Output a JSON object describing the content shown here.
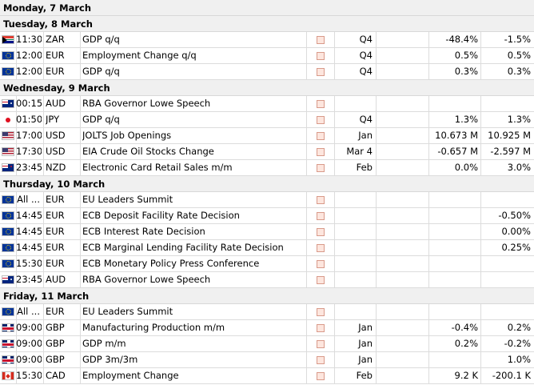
{
  "days": [
    {
      "label": "Monday, 7 March",
      "events": []
    },
    {
      "label": "Tuesday, 8 March",
      "events": [
        {
          "flag": "za-flag-icon",
          "time": "11:30",
          "currency": "ZAR",
          "event": "GDP q/q",
          "period": "Q4",
          "actual": "-48.4%",
          "previous": "-1.5%"
        },
        {
          "flag": "eu-flag-icon",
          "time": "12:00",
          "currency": "EUR",
          "event": "Employment Change q/q",
          "period": "Q4",
          "actual": "0.5%",
          "previous": "0.5%"
        },
        {
          "flag": "eu-flag-icon",
          "time": "12:00",
          "currency": "EUR",
          "event": "GDP q/q",
          "period": "Q4",
          "actual": "0.3%",
          "previous": "0.3%"
        }
      ]
    },
    {
      "label": "Wednesday, 9 March",
      "events": [
        {
          "flag": "au-flag-icon",
          "time": "00:15",
          "currency": "AUD",
          "event": "RBA Governor Lowe Speech",
          "period": "",
          "actual": "",
          "previous": ""
        },
        {
          "flag": "jp-flag-icon",
          "time": "01:50",
          "currency": "JPY",
          "event": "GDP q/q",
          "period": "Q4",
          "actual": "1.3%",
          "previous": "1.3%"
        },
        {
          "flag": "us-flag-icon",
          "time": "17:00",
          "currency": "USD",
          "event": "JOLTS Job Openings",
          "period": "Jan",
          "actual": "10.673 M",
          "previous": "10.925 M"
        },
        {
          "flag": "us-flag-icon",
          "time": "17:30",
          "currency": "USD",
          "event": "EIA Crude Oil Stocks Change",
          "period": "Mar 4",
          "actual": "-0.657 M",
          "previous": "-2.597 M"
        },
        {
          "flag": "nz-flag-icon",
          "time": "23:45",
          "currency": "NZD",
          "event": "Electronic Card Retail Sales m/m",
          "period": "Feb",
          "actual": "0.0%",
          "previous": "3.0%"
        }
      ]
    },
    {
      "label": "Thursday, 10 March",
      "events": [
        {
          "flag": "eu-flag-icon",
          "time": "All ...",
          "currency": "EUR",
          "event": "EU Leaders Summit",
          "period": "",
          "actual": "",
          "previous": ""
        },
        {
          "flag": "eu-flag-icon",
          "time": "14:45",
          "currency": "EUR",
          "event": "ECB Deposit Facility Rate Decision",
          "period": "",
          "actual": "",
          "previous": "-0.50%"
        },
        {
          "flag": "eu-flag-icon",
          "time": "14:45",
          "currency": "EUR",
          "event": "ECB Interest Rate Decision",
          "period": "",
          "actual": "",
          "previous": "0.00%"
        },
        {
          "flag": "eu-flag-icon",
          "time": "14:45",
          "currency": "EUR",
          "event": "ECB Marginal Lending Facility Rate Decision",
          "period": "",
          "actual": "",
          "previous": "0.25%"
        },
        {
          "flag": "eu-flag-icon",
          "time": "15:30",
          "currency": "EUR",
          "event": "ECB Monetary Policy Press Conference",
          "period": "",
          "actual": "",
          "previous": ""
        },
        {
          "flag": "au-flag-icon",
          "time": "23:45",
          "currency": "AUD",
          "event": "RBA Governor Lowe Speech",
          "period": "",
          "actual": "",
          "previous": ""
        }
      ]
    },
    {
      "label": "Friday, 11 March",
      "events": [
        {
          "flag": "eu-flag-icon",
          "time": "All ...",
          "currency": "EUR",
          "event": "EU Leaders Summit",
          "period": "",
          "actual": "",
          "previous": ""
        },
        {
          "flag": "gb-flag-icon",
          "time": "09:00",
          "currency": "GBP",
          "event": "Manufacturing Production m/m",
          "period": "Jan",
          "actual": "-0.4%",
          "previous": "0.2%"
        },
        {
          "flag": "gb-flag-icon",
          "time": "09:00",
          "currency": "GBP",
          "event": "GDP m/m",
          "period": "Jan",
          "actual": "0.2%",
          "previous": "-0.2%"
        },
        {
          "flag": "gb-flag-icon",
          "time": "09:00",
          "currency": "GBP",
          "event": "GDP 3m/3m",
          "period": "Jan",
          "actual": "",
          "previous": "1.0%"
        },
        {
          "flag": "ca-flag-icon",
          "time": "15:30",
          "currency": "CAD",
          "event": "Employment Change",
          "period": "Feb",
          "actual": "9.2 K",
          "previous": "-200.1 K"
        }
      ]
    }
  ],
  "colors": {
    "header_bg": "#f0f0f0",
    "importance_fill": "#fde6de",
    "importance_border": "#d99a8a",
    "grid": "#dcdcdc"
  }
}
